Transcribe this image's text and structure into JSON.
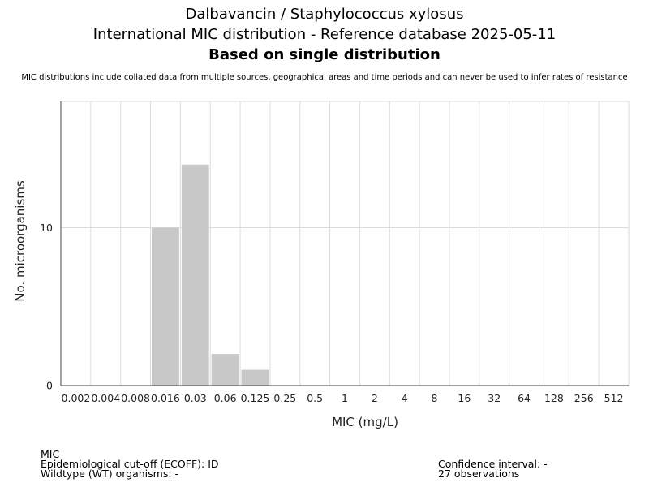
{
  "chart_data": {
    "type": "bar",
    "title": "Dalbavancin / Staphylococcus xylosus",
    "subtitle": "International MIC distribution - Reference database 2025-05-11",
    "subtitle2": "Based on single distribution",
    "note": "MIC distributions include collated data from multiple sources, geographical areas and time periods and can never be used to infer rates of resistance",
    "xlabel": "MIC (mg/L)",
    "ylabel": "No. microorganisms",
    "categories": [
      "0.002",
      "0.004",
      "0.008",
      "0.016",
      "0.03",
      "0.06",
      "0.125",
      "0.25",
      "0.5",
      "1",
      "2",
      "4",
      "8",
      "16",
      "32",
      "64",
      "128",
      "256",
      "512"
    ],
    "values": [
      0,
      0,
      0,
      10,
      14,
      2,
      1,
      0,
      0,
      0,
      0,
      0,
      0,
      0,
      0,
      0,
      0,
      0,
      0
    ],
    "ylim": [
      0,
      18
    ],
    "yticks": [
      0,
      10
    ],
    "grid": true,
    "bar_color": "#c8c8c8"
  },
  "footer": {
    "line1": "MIC",
    "line2": "Epidemiological cut-off (ECOFF): ID",
    "line3": "Wildtype (WT) organisms:  -",
    "ci": "Confidence interval: -",
    "observations": "27 observations"
  }
}
